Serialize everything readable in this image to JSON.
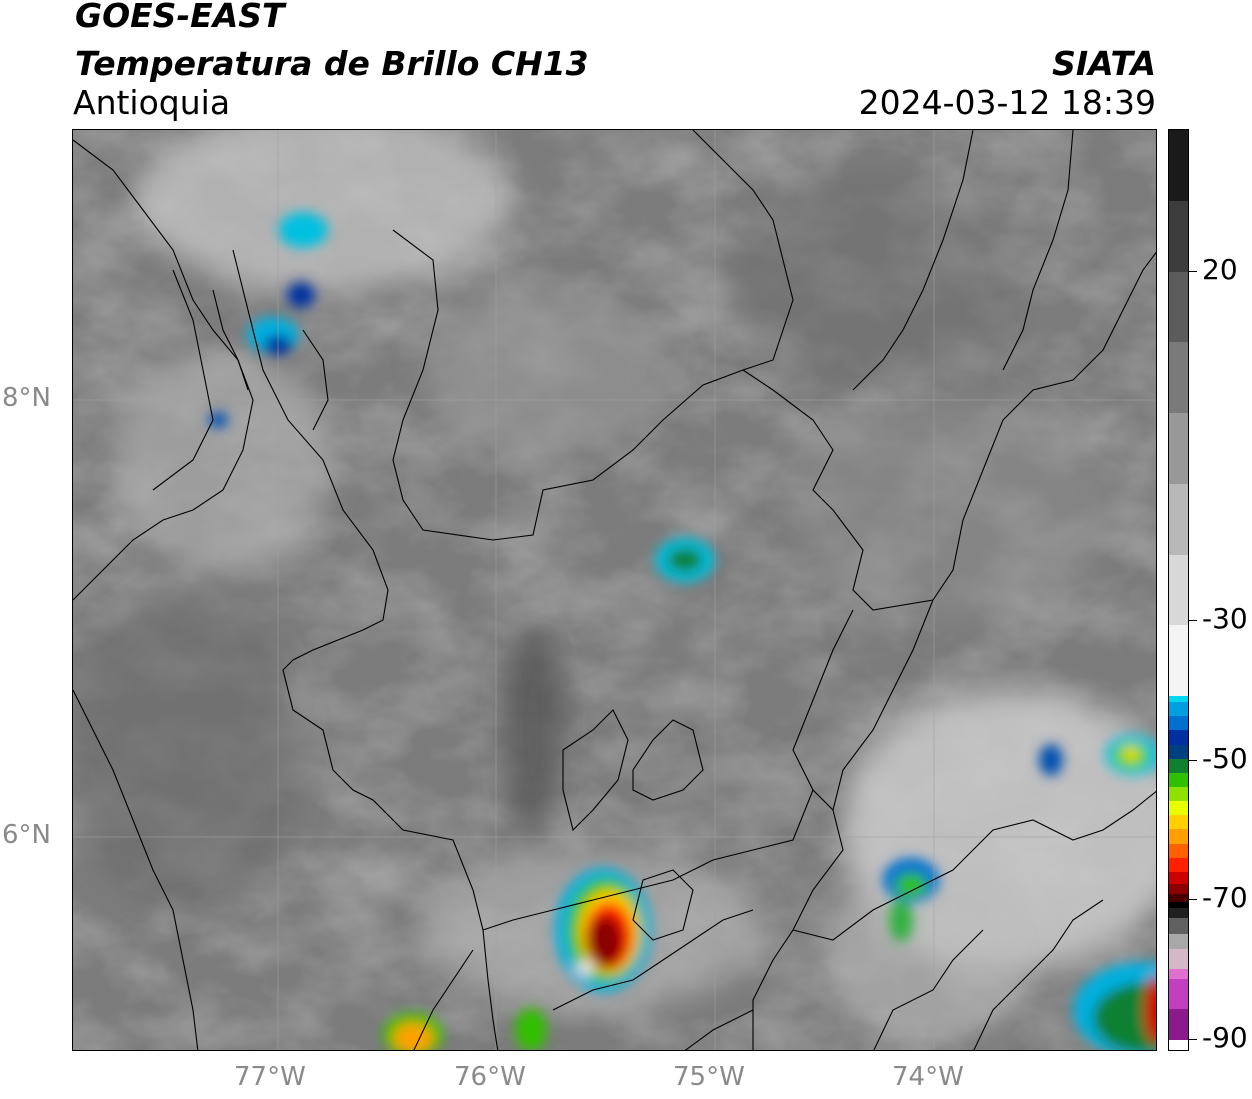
{
  "header": {
    "satellite": "GOES-EAST",
    "product": "Temperatura de Brillo CH13",
    "region": "Antioquia",
    "organization": "SIATA",
    "timestamp": "2024-03-12 18:39"
  },
  "map": {
    "x_ticks": [
      "77°W",
      "76°W",
      "75°W",
      "74°W"
    ],
    "y_ticks": [
      "8°N",
      "6°N"
    ]
  },
  "colorbar": {
    "ticks": [
      "20",
      "-30",
      "-50",
      "-70",
      "-90"
    ],
    "colors": [
      "#ffffff",
      "#8b1a8b",
      "#c040c0",
      "#e070d0",
      "#d4b8c8",
      "#a8a8a8",
      "#606060",
      "#202020",
      "#000000",
      "#4a0000",
      "#8b0000",
      "#cc0000",
      "#ff2000",
      "#ff6000",
      "#ffa000",
      "#ffd000",
      "#e8ff00",
      "#90e000",
      "#30c000",
      "#108030",
      "#004080",
      "#0030a0",
      "#0070d0",
      "#00a0e0",
      "#00d8f0",
      "#f4f4f4",
      "#d8d8d8",
      "#b8b8b8",
      "#989898",
      "#7a7a7a",
      "#5c5c5c",
      "#3c3c3c",
      "#1a1a1a"
    ]
  }
}
